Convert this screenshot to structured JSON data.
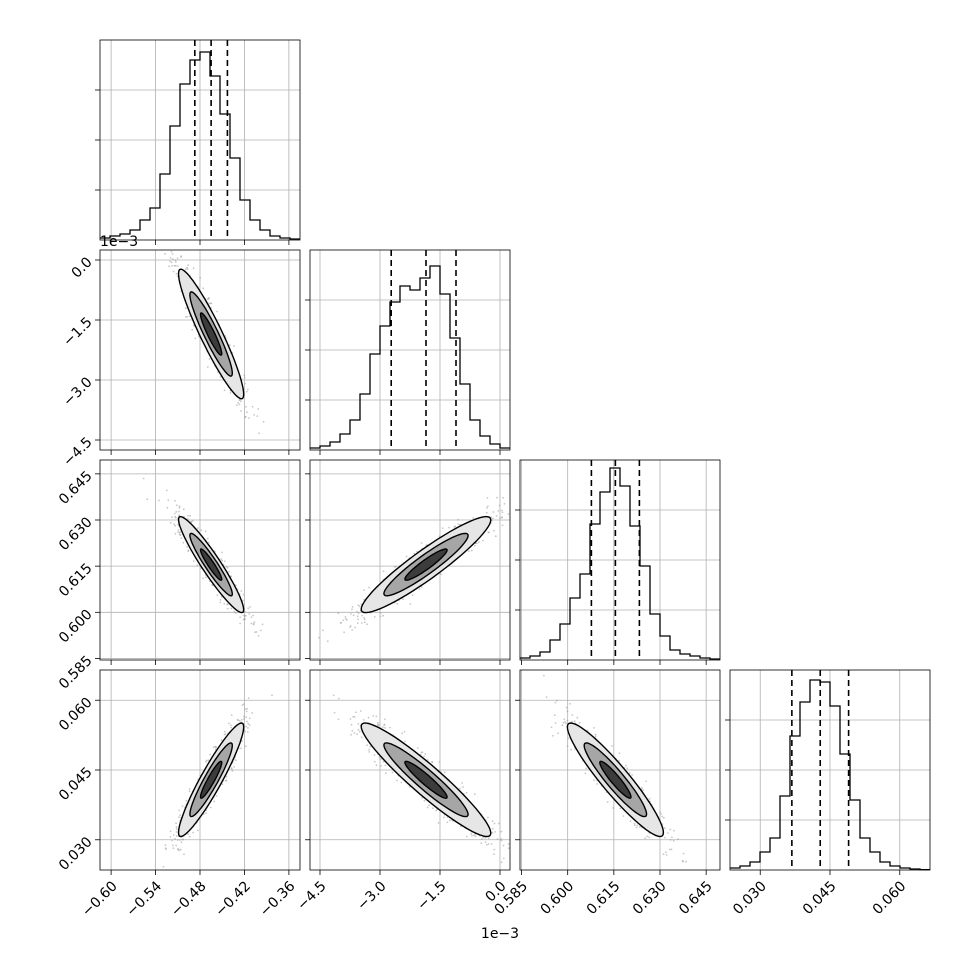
{
  "chart_data": {
    "type": "corner",
    "parameters": [
      {
        "ticks": [
          "−0.60",
          "−0.54",
          "−0.48",
          "−0.42",
          "−0.36"
        ],
        "tick_values": [
          -0.6,
          -0.54,
          -0.48,
          -0.42,
          -0.36
        ],
        "range": [
          -0.615,
          -0.345
        ],
        "median": -0.465,
        "q_low": -0.487,
        "q_high": -0.443,
        "offset": ""
      },
      {
        "ticks": [
          "−4.5",
          "−3.0",
          "−1.5",
          "0.0"
        ],
        "tick_values": [
          -4.5,
          -3.0,
          -1.5,
          0.0
        ],
        "range": [
          -4.75,
          0.25
        ],
        "median": -1.85,
        "q_low": -2.72,
        "q_high": -1.1,
        "offset": "1e−3"
      },
      {
        "ticks": [
          "0.585",
          "0.600",
          "0.615",
          "0.630",
          "0.645"
        ],
        "tick_values": [
          0.585,
          0.6,
          0.615,
          0.63,
          0.645
        ],
        "range": [
          0.5845,
          0.6495
        ],
        "median": 0.6155,
        "q_low": 0.6077,
        "q_high": 0.6233,
        "offset": ""
      },
      {
        "ticks": [
          "0.030",
          "0.045",
          "0.060"
        ],
        "tick_values": [
          0.03,
          0.045,
          0.06
        ],
        "range": [
          0.0235,
          0.0665
        ],
        "median": 0.0429,
        "q_low": 0.0368,
        "q_high": 0.049,
        "offset": ""
      }
    ],
    "histograms": [
      [
        0.01,
        0.02,
        0.03,
        0.05,
        0.1,
        0.16,
        0.33,
        0.57,
        0.78,
        0.9,
        0.94,
        0.82,
        0.63,
        0.41,
        0.2,
        0.1,
        0.05,
        0.02,
        0.01,
        0.005
      ],
      [
        0.01,
        0.02,
        0.04,
        0.08,
        0.15,
        0.28,
        0.48,
        0.62,
        0.74,
        0.82,
        0.8,
        0.86,
        0.92,
        0.78,
        0.56,
        0.33,
        0.15,
        0.07,
        0.03,
        0.01
      ],
      [
        0.01,
        0.02,
        0.04,
        0.1,
        0.18,
        0.31,
        0.43,
        0.68,
        0.84,
        0.96,
        0.87,
        0.67,
        0.47,
        0.23,
        0.12,
        0.05,
        0.03,
        0.02,
        0.01,
        0.005
      ],
      [
        0.01,
        0.02,
        0.04,
        0.09,
        0.16,
        0.37,
        0.67,
        0.84,
        0.95,
        0.94,
        0.82,
        0.58,
        0.35,
        0.16,
        0.09,
        0.04,
        0.02,
        0.01,
        0.005,
        0.002
      ]
    ],
    "pairs": [
      {
        "row": 1,
        "col": 0,
        "correlation": -0.93
      },
      {
        "row": 2,
        "col": 0,
        "correlation": -0.94
      },
      {
        "row": 2,
        "col": 1,
        "correlation": 0.93
      },
      {
        "row": 3,
        "col": 0,
        "correlation": 0.93
      },
      {
        "row": 3,
        "col": 1,
        "correlation": -0.94
      },
      {
        "row": 3,
        "col": 2,
        "correlation": -0.93
      }
    ],
    "colors": {
      "line": "#000000",
      "points": "#9a9a9a",
      "grid": "#b0b0b0",
      "fill_light": "#e6e6e6",
      "fill_mid": "#a6a6a6",
      "fill_dark": "#3c3c3c"
    },
    "grid": true
  }
}
